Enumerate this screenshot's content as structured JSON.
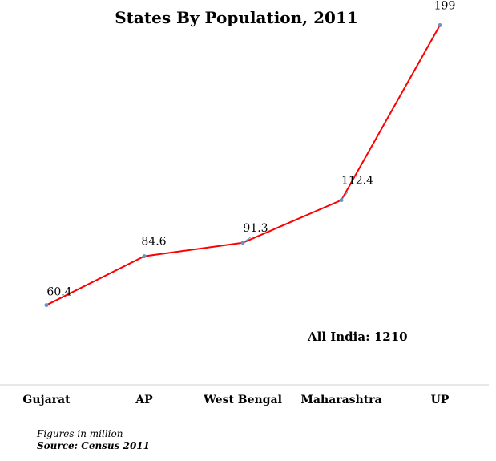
{
  "chart_data": {
    "type": "line",
    "title": "States By Population, 2011",
    "categories": [
      "Gujarat",
      "AP",
      "West Bengal",
      "Maharashtra",
      "UP"
    ],
    "values": [
      60.4,
      84.6,
      91.3,
      112.4,
      199
    ],
    "data_labels": [
      "60.4",
      "84.6",
      "91.3",
      "112.4",
      "199"
    ],
    "ylim": [
      0,
      210
    ],
    "grid": false,
    "legend": "none",
    "line_color": "#ff0000",
    "marker_color": "#6a93c6"
  },
  "annotation": "All India: 1210",
  "footnotes": {
    "units": "Figures in million",
    "source": "Source: Census 2011"
  }
}
